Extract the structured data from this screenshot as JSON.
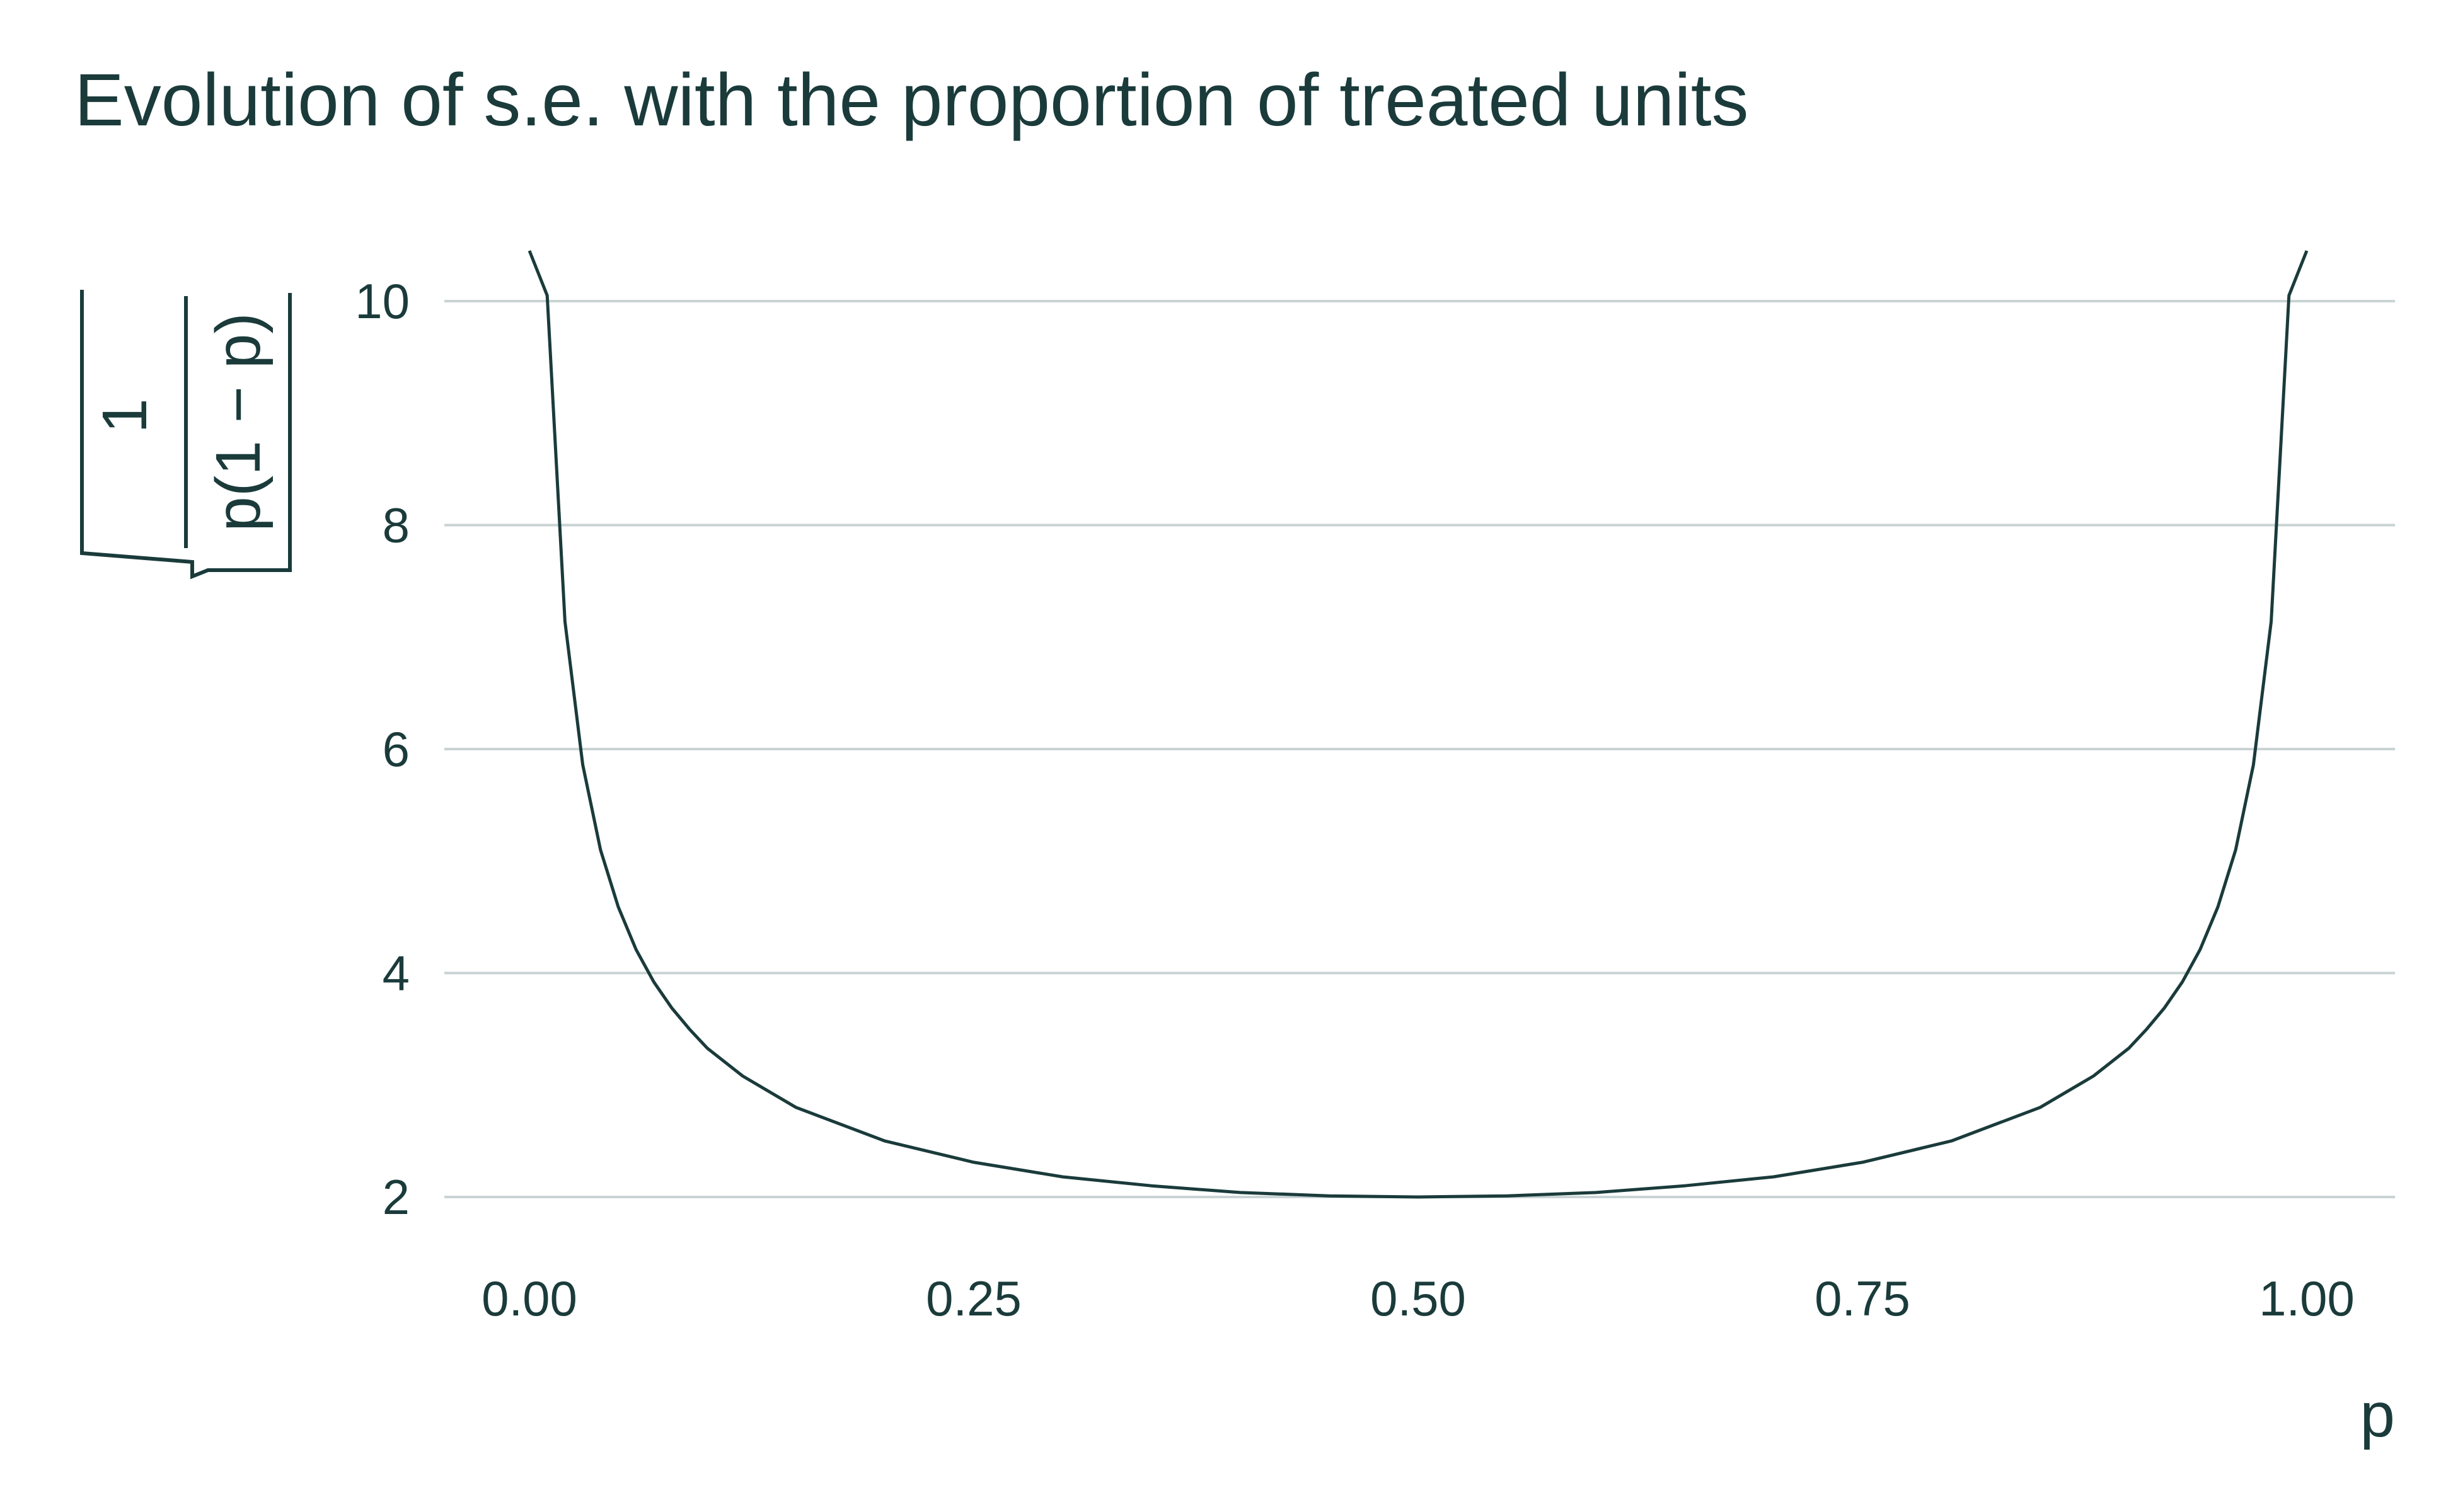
{
  "chart_data": {
    "type": "line",
    "title": "Evolution of s.e. with the proportion of treated units",
    "xlabel": "p",
    "ylabel": {
      "numerator": "1",
      "denominator": "p(1 − p)",
      "form": "square-root-fraction"
    },
    "xlim": [
      0,
      1
    ],
    "ylim": [
      1.5,
      10.5
    ],
    "x_ticks": [
      0,
      0.25,
      0.5,
      0.75,
      1
    ],
    "x_tick_labels": [
      "0.00",
      "0.25",
      "0.50",
      "0.75",
      "1.00"
    ],
    "y_ticks": [
      2,
      4,
      6,
      8,
      10
    ],
    "y_tick_labels": [
      "2",
      "4",
      "6",
      "8",
      "10"
    ],
    "grid": "horizontal-major",
    "colors": {
      "line": "#1b3b3b",
      "grid": "#c9d3d3",
      "text": "#1b3b3b"
    },
    "series": [
      {
        "x": [
          0.0,
          0.01,
          0.02,
          0.03,
          0.04,
          0.05,
          0.06,
          0.07,
          0.08,
          0.09,
          0.1,
          0.12,
          0.15,
          0.2,
          0.25,
          0.3,
          0.35,
          0.4,
          0.45,
          0.5,
          0.55,
          0.6,
          0.65,
          0.7,
          0.75,
          0.8,
          0.85,
          0.88,
          0.9,
          0.91,
          0.92,
          0.93,
          0.94,
          0.95,
          0.96,
          0.97,
          0.98,
          0.99,
          1.0
        ],
        "y": [
          10.45,
          10.05,
          7.14,
          5.86,
          5.1,
          4.59,
          4.21,
          3.92,
          3.69,
          3.5,
          3.33,
          3.08,
          2.8,
          2.5,
          2.31,
          2.18,
          2.1,
          2.04,
          2.01,
          2.0,
          2.01,
          2.04,
          2.1,
          2.18,
          2.31,
          2.5,
          2.8,
          3.08,
          3.33,
          3.5,
          3.69,
          3.92,
          4.21,
          4.59,
          5.1,
          5.86,
          7.14,
          10.05,
          10.45
        ]
      }
    ]
  }
}
